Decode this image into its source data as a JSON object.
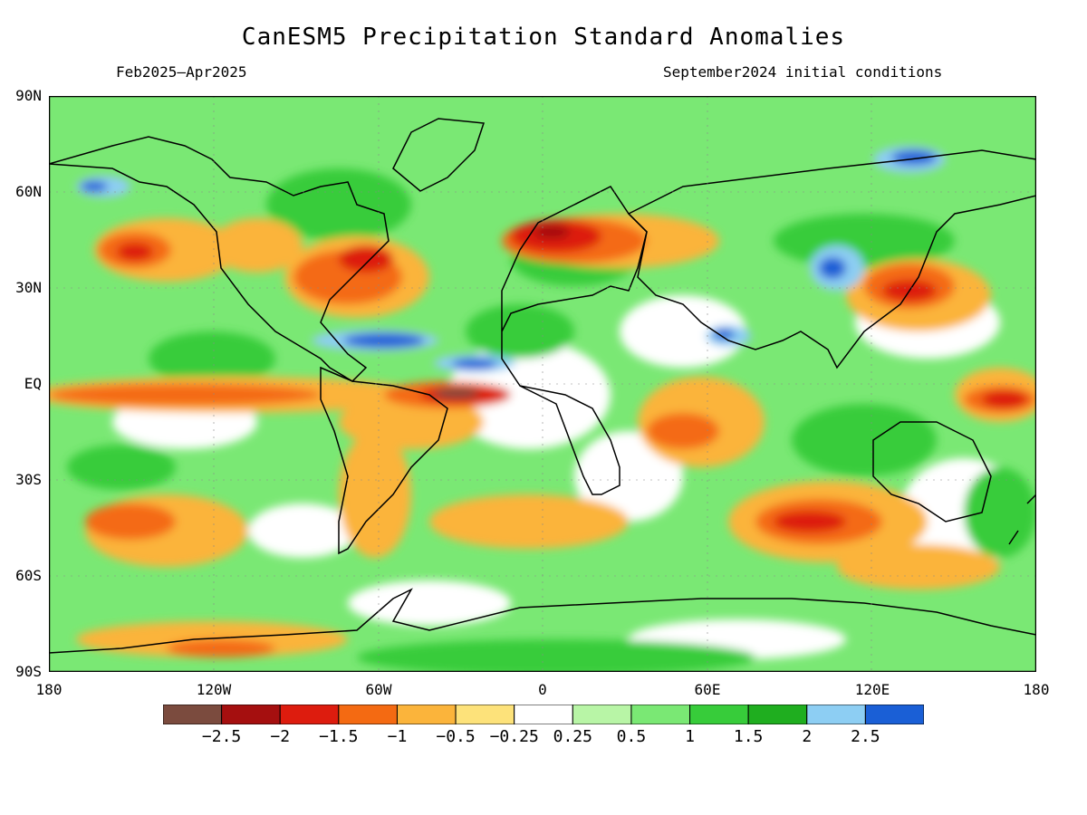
{
  "title": "CanESM5 Precipitation Standard Anomalies",
  "period": "Feb2025–Apr2025",
  "init": "September2024 initial conditions",
  "lat_labels": [
    "90N",
    "60N",
    "30N",
    "EQ",
    "30S",
    "60S",
    "90S"
  ],
  "lon_labels": [
    "180",
    "120W",
    "60W",
    "0",
    "60E",
    "120E",
    "180"
  ],
  "colorbar": {
    "colors": [
      "#7b4b3e",
      "#a50f0f",
      "#dd1c0e",
      "#f46a12",
      "#fbb43b",
      "#fde27a",
      "#ffffff",
      "#b8f5a6",
      "#7ae874",
      "#37cc3a",
      "#1fae1f",
      "#8dcef3",
      "#1a5fd6"
    ],
    "labels": [
      "−2.5",
      "−2",
      "−1.5",
      "−1",
      "−0.5",
      "−0.25",
      "0.25",
      "0.5",
      "1",
      "1.5",
      "2",
      "2.5"
    ]
  }
}
